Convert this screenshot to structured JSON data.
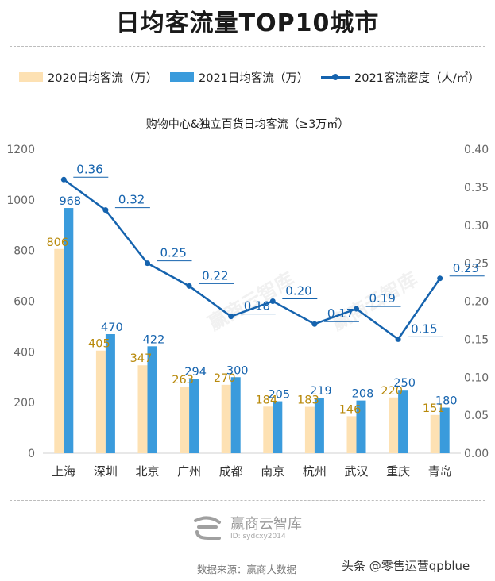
{
  "title": "日均客流量TOP10城市",
  "legend": {
    "s2020": "2020日均客流（万）",
    "s2021": "2021日均客流（万）",
    "density": "2021客流密度（人/㎡）"
  },
  "watermark": "赢商云智库",
  "watermark_id": "ID: sydcxy2014",
  "source": "数据来源：赢商大数据",
  "overlay_credit": "头条 @零售运营qpblue",
  "colors": {
    "s2020": "#fde1b3",
    "s2021": "#3a9bdc",
    "density": "#1563ae",
    "label2020": "#b8890a",
    "label2021": "#1563ae"
  },
  "chart_data": {
    "type": "bar",
    "title": "购物中心&独立百货日均客流（≥3万㎡）",
    "categories": [
      "上海",
      "深圳",
      "北京",
      "广州",
      "成都",
      "南京",
      "杭州",
      "武汉",
      "重庆",
      "青岛"
    ],
    "series": [
      {
        "name": "2020日均客流（万）",
        "type": "bar",
        "axis": "left",
        "values": [
          806,
          405,
          347,
          263,
          270,
          184,
          183,
          146,
          220,
          151
        ]
      },
      {
        "name": "2021日均客流（万）",
        "type": "bar",
        "axis": "left",
        "values": [
          968,
          470,
          422,
          294,
          300,
          205,
          219,
          208,
          250,
          180
        ]
      },
      {
        "name": "2021客流密度（人/㎡）",
        "type": "line",
        "axis": "right",
        "values": [
          0.36,
          0.32,
          0.25,
          0.22,
          0.18,
          0.2,
          0.17,
          0.19,
          0.15,
          0.23
        ]
      }
    ],
    "yleft": {
      "min": 0,
      "max": 1200,
      "ticks": [
        "0",
        "200",
        "400",
        "600",
        "800",
        "1000",
        "1200"
      ]
    },
    "yright": {
      "min": 0,
      "max": 0.4,
      "ticks": [
        "0.00",
        "0.05",
        "0.10",
        "0.15",
        "0.20",
        "0.25",
        "0.30",
        "0.35",
        "0.40"
      ]
    },
    "density_labels": [
      "0.36",
      "0.32",
      "0.25",
      "0.22",
      "0.18",
      "0.20",
      "0.17",
      "0.19",
      "0.15",
      "0.23"
    ],
    "grid": false,
    "legend_position": "top"
  }
}
